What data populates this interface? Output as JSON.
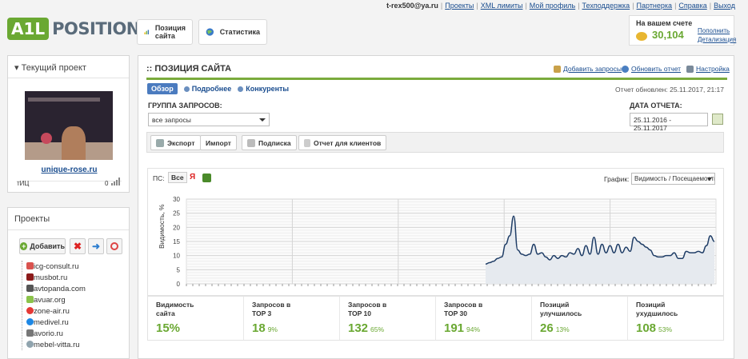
{
  "header": {
    "email": "t-rex500@ya.ru",
    "links": [
      "Проекты",
      "XML лимиты",
      "Мой профиль",
      "Техподдержка",
      "Партнерка",
      "Справка",
      "Выход"
    ],
    "logo_badge": "A1L",
    "logo_text": "POSITIONS",
    "nav": [
      {
        "label_line1": "Позиция",
        "label_line2": "сайта",
        "icon": "position-chart-icon"
      },
      {
        "label": "Статистика",
        "icon": "statistics-globe-icon"
      }
    ],
    "account": {
      "label": "На вашем счете",
      "balance": "30,104",
      "replenish": "Пополнить",
      "details": "Детализация"
    }
  },
  "current_project": {
    "title": "Текущий проект",
    "site": "unique-rose.ru",
    "tic_label": "тИЦ",
    "tic_value": "0"
  },
  "projects": {
    "title": "Проекты",
    "add_label": "Добавить",
    "items": [
      {
        "name": "icg-consult.ru",
        "color": "#d9534f"
      },
      {
        "name": "musbot.ru",
        "color": "#8b1a1a"
      },
      {
        "name": "avtopanda.com",
        "color": "#555555"
      },
      {
        "name": "avuar.org",
        "color": "#8bc34a"
      },
      {
        "name": "zone-air.ru",
        "color": "#e53935"
      },
      {
        "name": "medivel.ru",
        "color": "#1e88e5"
      },
      {
        "name": "avorio.ru",
        "color": "#777777"
      },
      {
        "name": "mebel-vitta.ru",
        "color": "#90a4ae"
      }
    ]
  },
  "main": {
    "title": ":: ПОЗИЦИЯ САЙТА",
    "actions": [
      "Добавить запросы",
      "Обновить отчет",
      "Настройка"
    ],
    "tabs": [
      "Обзор",
      "Подробнее",
      "Конкуренты"
    ],
    "updated": "Отчет обновлен: 25.11.2017, 21:17",
    "group_label": "ГРУППА ЗАПРОСОВ:",
    "group_value": "все запросы",
    "date_label": "ДАТА ОТЧЕТА:",
    "date_value": "25.11.2016 - 25.11.2017",
    "toolbar": [
      "Экспорт",
      "Импорт",
      "Подписка",
      "Отчет для клиентов"
    ],
    "ps_label": "ПС:",
    "ps_all": "Все",
    "ps_yandex": "Я",
    "graph_label": "График:",
    "graph_value": "Видимость / Посещаемость"
  },
  "chart_data": {
    "type": "area",
    "ylabel": "Видимость, %",
    "ylim": [
      0,
      30
    ],
    "yticks": [
      0,
      5,
      10,
      15,
      20,
      25,
      30
    ],
    "values": [
      7,
      7.5,
      8,
      9,
      9.5,
      14,
      17,
      24,
      12,
      10.5,
      10,
      10.5,
      14,
      10.5,
      11,
      9.5,
      8.5,
      10,
      9,
      10,
      9.5,
      11,
      10.5,
      12.5,
      10,
      13.5,
      10.5,
      16.5,
      10.5,
      14,
      11,
      13.5,
      11,
      14,
      11,
      13,
      11.5,
      16.5,
      15,
      14,
      13,
      12,
      10,
      9.5,
      9.5,
      10,
      10,
      11,
      9,
      9,
      11.5,
      11,
      11,
      11.5,
      11,
      13.5,
      17,
      15
    ],
    "colors": {
      "line": "#1f3d66",
      "fill": "#e6eaef",
      "accent": "#6aa832"
    }
  },
  "stats": [
    {
      "line1": "Видимость",
      "line2": "сайта",
      "value": "15%",
      "pct": ""
    },
    {
      "line1": "Запросов в",
      "line2": "TOP 3",
      "value": "18",
      "pct": "9%"
    },
    {
      "line1": "Запросов в",
      "line2": "TOP 10",
      "value": "132",
      "pct": "65%"
    },
    {
      "line1": "Запросов в",
      "line2": "TOP 30",
      "value": "191",
      "pct": "94%"
    },
    {
      "line1": "Позиций",
      "line2": "улучшилось",
      "value": "26",
      "pct": "13%"
    },
    {
      "line1": "Позиций",
      "line2": "ухудшилось",
      "value": "108",
      "pct": "53%"
    }
  ]
}
